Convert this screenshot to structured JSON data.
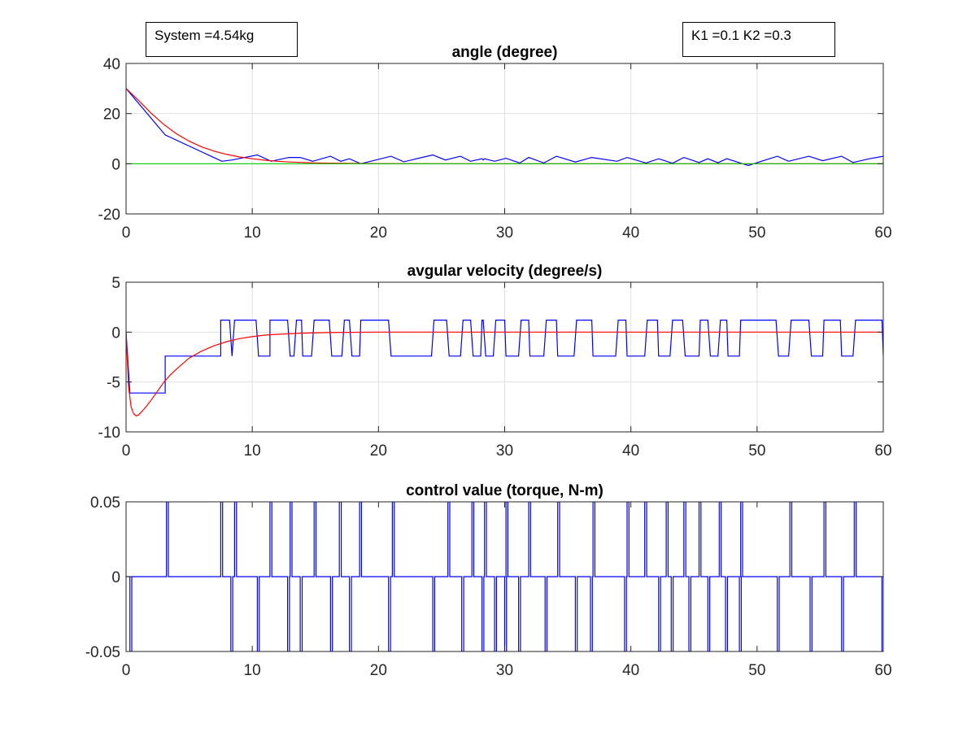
{
  "annotations": {
    "system_mass": "System =4.54kg",
    "gains": "K1 =0.1 K2 =0.3"
  },
  "colors": {
    "measured": "#0000ff",
    "model": "#ff0000",
    "reference": "#00cc00",
    "grid": "#e0e0e0",
    "axes": "#262626"
  },
  "chart_data": [
    {
      "type": "line",
      "title": "angle (degree)",
      "xlabel": "",
      "ylabel": "",
      "xlim": [
        0,
        60
      ],
      "ylim": [
        -20,
        40
      ],
      "xticks": [
        0,
        10,
        20,
        30,
        40,
        50,
        60
      ],
      "yticks": [
        -20,
        0,
        20,
        40
      ],
      "yticklabels": [
        "-20",
        "0",
        "20",
        "40"
      ],
      "grid": true,
      "series": [
        {
          "color": "#0000ff",
          "x": [
            0,
            3.1,
            7.6,
            8.4,
            10.4,
            11.5,
            12.9,
            13.3,
            13.8,
            14.8,
            16.2,
            17,
            17.7,
            18.6,
            21,
            22,
            24.3,
            25.3,
            26.5,
            27.3,
            28.2,
            28.3,
            28.4,
            29.2,
            30.1,
            31.2,
            31.9,
            33.1,
            34.1,
            35.6,
            36.9,
            38.9,
            39.7,
            41.2,
            42.2,
            43.3,
            44.2,
            45.4,
            46.1,
            46.9,
            47.6,
            48.6,
            49.3,
            51.6,
            52.5,
            54.1,
            55.2,
            56.7,
            57.6,
            58.9,
            60
          ],
          "y": [
            30,
            11.5,
            1,
            1.5,
            3.5,
            1,
            2.5,
            2.5,
            2.5,
            1,
            3,
            1,
            2,
            0,
            3,
            0.8,
            3.5,
            1.5,
            3,
            1,
            2,
            1.5,
            2,
            1,
            2.2,
            0.3,
            2.5,
            0.3,
            3,
            0.7,
            2.5,
            1,
            2.5,
            0.3,
            2,
            0.2,
            2.5,
            0.5,
            2,
            0.4,
            2,
            0.4,
            -0.7,
            3,
            1,
            3,
            1.2,
            3,
            0.5,
            2,
            3
          ]
        },
        {
          "color": "#ff0000",
          "x": [
            0,
            1,
            2,
            3,
            4,
            5,
            6,
            7,
            8,
            9,
            10,
            11,
            12,
            13,
            14,
            15,
            16,
            18,
            20,
            25,
            30,
            40,
            50,
            60
          ],
          "y": [
            30,
            25.2,
            20.1,
            15.6,
            11.9,
            9,
            6.7,
            5,
            3.7,
            2.7,
            2,
            1.4,
            1,
            0.7,
            0.5,
            0.35,
            0.25,
            0.13,
            0.06,
            0,
            0,
            0,
            0,
            0
          ]
        },
        {
          "color": "#00cc00",
          "x": [
            0,
            60
          ],
          "y": [
            0,
            0
          ]
        }
      ]
    },
    {
      "type": "line",
      "title": "avgular velocity (degree/s)",
      "xlabel": "",
      "ylabel": "",
      "xlim": [
        0,
        60
      ],
      "ylim": [
        -10,
        5
      ],
      "xticks": [
        0,
        10,
        20,
        30,
        40,
        50,
        60
      ],
      "yticks": [
        -10,
        -5,
        0,
        5
      ],
      "yticklabels": [
        "-10",
        "-5",
        "0",
        "5"
      ],
      "grid": true,
      "series": [
        {
          "color": "#0000ff",
          "x": [
            0,
            0.3,
            0.3,
            3.1,
            3.1,
            7.5,
            7.5,
            8.2,
            8.4,
            8.6,
            10.3,
            10.5,
            11.4,
            11.4,
            12.8,
            13,
            13.3,
            13.5,
            13.9,
            14,
            14.7,
            14.9,
            16.1,
            16.3,
            17.1,
            17.3,
            17.7,
            17.9,
            18.5,
            18.6,
            20.8,
            21,
            24.2,
            24.4,
            25.4,
            25.6,
            26.5,
            26.7,
            27.3,
            27.5,
            28.1,
            28.2,
            28.3,
            28.5,
            29.1,
            29.3,
            30,
            30.1,
            31.1,
            31.3,
            31.9,
            32,
            33.1,
            33.3,
            34.1,
            34.2,
            35.5,
            35.7,
            36.9,
            37,
            38.8,
            39,
            39.6,
            39.7,
            41.1,
            41.3,
            42.1,
            42.2,
            43.1,
            43.3,
            44.1,
            44.3,
            45.4,
            45.5,
            46.1,
            46.3,
            46.9,
            47.1,
            47.6,
            47.7,
            48.6,
            48.7,
            51.5,
            51.7,
            52.5,
            52.7,
            54.1,
            54.3,
            55.2,
            55.3,
            56.6,
            56.7,
            57.6,
            57.8,
            59.9,
            60
          ],
          "y": [
            0,
            -6.1,
            -6.1,
            -6.1,
            -2.4,
            -2.4,
            1.2,
            1.2,
            -2.4,
            1.2,
            1.2,
            -2.4,
            -2.4,
            1.2,
            1.2,
            -2.4,
            -2.4,
            1.2,
            1.2,
            -2.4,
            -2.4,
            1.2,
            1.2,
            -2.4,
            -2.4,
            1.2,
            1.2,
            -2.4,
            -2.4,
            1.2,
            1.2,
            -2.4,
            -2.4,
            1.2,
            1.2,
            -2.4,
            -2.4,
            1.2,
            1.2,
            -2.4,
            -2.4,
            1.2,
            1.2,
            -2.4,
            -2.4,
            1.2,
            1.2,
            -2.4,
            -2.4,
            1.2,
            1.2,
            -2.4,
            -2.4,
            1.2,
            1.2,
            -2.4,
            -2.4,
            1.2,
            1.2,
            -2.4,
            -2.4,
            1.2,
            1.2,
            -2.4,
            -2.4,
            1.2,
            1.2,
            -2.4,
            -2.4,
            1.2,
            1.2,
            -2.4,
            -2.4,
            1.2,
            1.2,
            -2.4,
            -2.4,
            1.2,
            1.2,
            -2.4,
            -2.4,
            1.2,
            1.2,
            -2.4,
            -2.4,
            1.2,
            1.2,
            -2.4,
            -2.4,
            1.2,
            1.2,
            -2.4,
            -2.4,
            1.2,
            1.2,
            -2.4
          ]
        },
        {
          "color": "#ff0000",
          "x": [
            0,
            0.2,
            0.4,
            0.6,
            0.8,
            1,
            1.5,
            2,
            2.5,
            3,
            3.5,
            4,
            5,
            6,
            7,
            8,
            9,
            10,
            11,
            12,
            14,
            16,
            20,
            30,
            60
          ],
          "y": [
            0,
            -5.5,
            -7.5,
            -8.2,
            -8.4,
            -8.3,
            -7.6,
            -6.8,
            -5.9,
            -5,
            -4.3,
            -3.7,
            -2.6,
            -1.9,
            -1.35,
            -0.95,
            -0.65,
            -0.45,
            -0.3,
            -0.22,
            -0.1,
            -0.05,
            0,
            0,
            0
          ]
        }
      ]
    },
    {
      "type": "line",
      "title": "control value (torque, N-m)",
      "xlabel": "",
      "ylabel": "",
      "xlim": [
        0,
        60
      ],
      "ylim": [
        -0.05,
        0.05
      ],
      "xticks": [
        0,
        10,
        20,
        30,
        40,
        50,
        60
      ],
      "yticks": [
        -0.05,
        0,
        0.05
      ],
      "yticklabels": [
        "-0.05",
        "0",
        "0.05"
      ],
      "grid": false,
      "pulses_up": [
        3.2,
        7.5,
        8.6,
        11.4,
        13,
        14.9,
        16.9,
        18.5,
        21.1,
        25.5,
        27.4,
        28.4,
        30.1,
        31.9,
        34.2,
        37,
        39.7,
        41.1,
        42.8,
        44.2,
        45.4,
        47,
        48.7,
        52.6,
        55.3,
        57.7
      ],
      "pulses_down": [
        0.3,
        8.3,
        10.4,
        12.8,
        13.8,
        16.2,
        17.7,
        20.8,
        24.3,
        26.6,
        28.2,
        29.2,
        30,
        31.1,
        33.2,
        35.6,
        36.8,
        39.5,
        42.2,
        43.2,
        44.6,
        46.1,
        47.5,
        48.6,
        51.6,
        54.2,
        56.7,
        59.9
      ]
    }
  ]
}
